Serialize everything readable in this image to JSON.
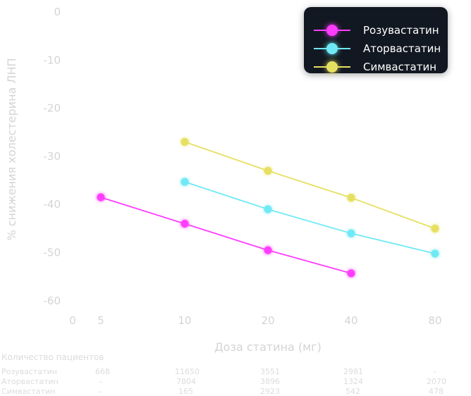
{
  "chart_data": {
    "type": "line",
    "xlabel": "Доза статина (мг)",
    "ylabel": "% снижения холестерина ЛНП",
    "x_ticks": [
      "0",
      "5",
      "10",
      "20",
      "40",
      "80"
    ],
    "y_ticks": [
      0,
      -10,
      -20,
      -30,
      -40,
      -50,
      -60
    ],
    "ylim": [
      -60,
      0
    ],
    "legend_position": "top-right",
    "series": [
      {
        "name": "Розувастатин",
        "color": "#ff3cff",
        "x": [
          "5",
          "10",
          "20",
          "40"
        ],
        "values": [
          -38.5,
          -44,
          -49.5,
          -54.3
        ]
      },
      {
        "name": "Аторвастатин",
        "color": "#6fe9f5",
        "x": [
          "10",
          "20",
          "40",
          "80"
        ],
        "values": [
          -35.3,
          -41,
          -46,
          -50.2
        ]
      },
      {
        "name": "Симвастатин",
        "color": "#e6e062",
        "x": [
          "10",
          "20",
          "40",
          "80"
        ],
        "values": [
          -27,
          -33,
          -38.6,
          -45
        ]
      }
    ]
  },
  "table": {
    "title": "Количество пациентов",
    "rows": [
      {
        "label": "Розувастатин",
        "cells": [
          "668",
          "11650",
          "3551",
          "2981",
          "–"
        ]
      },
      {
        "label": "Аторвастатин",
        "cells": [
          "–",
          "7804",
          "3896",
          "1324",
          "2070"
        ]
      },
      {
        "label": "Симвастатин",
        "cells": [
          "–",
          "165",
          "2923",
          "542",
          "478"
        ]
      }
    ]
  }
}
